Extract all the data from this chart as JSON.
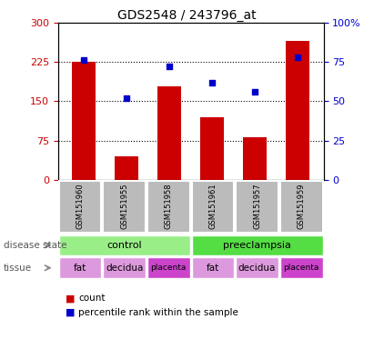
{
  "title": "GDS2548 / 243796_at",
  "samples": [
    "GSM151960",
    "GSM151955",
    "GSM151958",
    "GSM151961",
    "GSM151957",
    "GSM151959"
  ],
  "bar_values": [
    225,
    45,
    178,
    120,
    82,
    265
  ],
  "scatter_values": [
    76,
    52,
    72,
    62,
    56,
    78
  ],
  "bar_color": "#cc0000",
  "scatter_color": "#0000cc",
  "ylim_left": [
    0,
    300
  ],
  "ylim_right": [
    0,
    100
  ],
  "yticks_left": [
    0,
    75,
    150,
    225,
    300
  ],
  "yticks_right": [
    0,
    25,
    50,
    75,
    100
  ],
  "ytick_labels_left": [
    "0",
    "75",
    "150",
    "225",
    "300"
  ],
  "ytick_labels_right": [
    "0",
    "25",
    "50",
    "75",
    "100%"
  ],
  "disease_state_labels": [
    "control",
    "preeclampsia"
  ],
  "tissue_labels": [
    "fat",
    "decidua",
    "placenta",
    "fat",
    "decidua",
    "placenta"
  ],
  "tissue_colors": [
    "#dd99dd",
    "#dd99dd",
    "#cc44cc",
    "#dd99dd",
    "#dd99dd",
    "#cc44cc"
  ],
  "control_color": "#99ee88",
  "preeclampsia_color": "#55dd44",
  "sample_box_color": "#bbbbbb",
  "background_color": "#ffffff",
  "legend_count_color": "#cc0000",
  "legend_pct_color": "#0000cc"
}
